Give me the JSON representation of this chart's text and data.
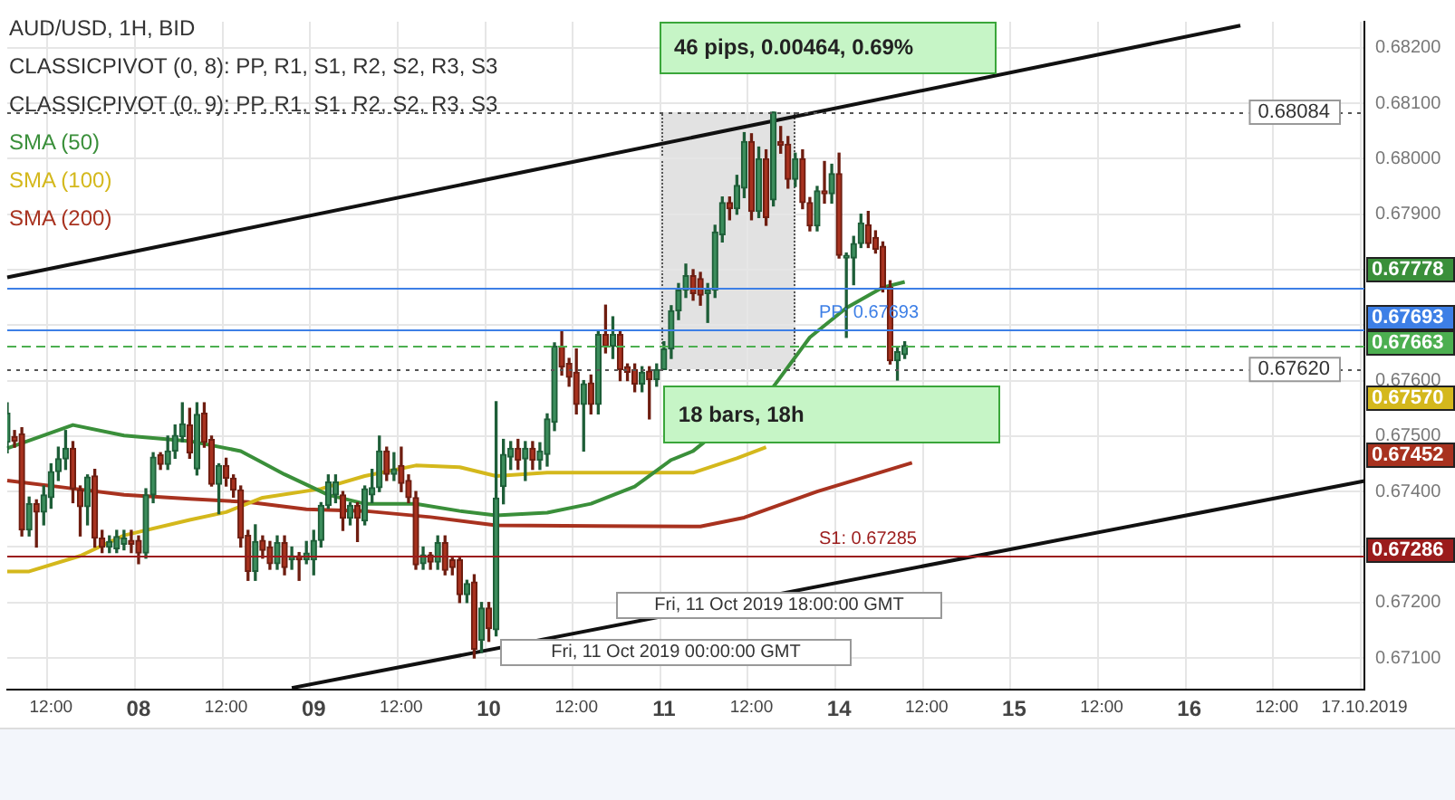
{
  "chart_data": {
    "type": "candlestick",
    "title": "AUD/USD, 1H, BID",
    "categories": [
      null,
      null,
      null,
      null,
      null,
      null,
      "12:00",
      null,
      null,
      null,
      null,
      null,
      null,
      null,
      null,
      null,
      null,
      null,
      "08",
      null,
      null,
      null,
      null,
      null,
      null,
      null,
      null,
      null,
      null,
      null,
      "12:00",
      null,
      null,
      null,
      null,
      null,
      null,
      null,
      null,
      null,
      null,
      null,
      "09",
      null,
      null,
      null,
      null,
      null,
      null,
      null,
      null,
      null,
      null,
      null,
      "12:00",
      null,
      null,
      null,
      null,
      null,
      null,
      null,
      null,
      null,
      null,
      null,
      "10",
      null,
      null,
      null,
      null,
      null,
      null,
      null,
      null,
      null,
      null,
      null,
      "12:00",
      null,
      null,
      null,
      null,
      null,
      null,
      null,
      null,
      null,
      null,
      null,
      "11",
      null,
      null,
      null,
      null,
      null,
      null,
      null,
      null,
      null,
      null,
      null,
      "12:00",
      null,
      null,
      null,
      null,
      null,
      null,
      null,
      null,
      null,
      null,
      null,
      "14",
      null,
      null,
      null,
      null,
      null,
      null,
      null,
      null,
      null,
      null,
      null,
      "12:00",
      null,
      null,
      null,
      null,
      null,
      null,
      null,
      null,
      null,
      null,
      null,
      "15",
      null,
      null,
      null,
      null,
      null,
      null,
      null,
      null,
      null,
      null,
      null,
      "12:00",
      null,
      null,
      null,
      null,
      null,
      null,
      null,
      null,
      null,
      null,
      null,
      "16",
      null,
      null,
      null,
      null,
      null,
      null,
      null,
      null,
      null,
      null,
      null,
      "12:00",
      null,
      null,
      null,
      null,
      null,
      null,
      null,
      null,
      null,
      null,
      null,
      "17.10.2019"
    ],
    "ohlc": [
      [
        0.67489,
        0.6756,
        0.6747,
        0.67541
      ],
      [
        0.67499,
        0.6751,
        0.6748,
        0.67491
      ],
      [
        0.67504,
        0.67515,
        0.6732,
        0.67331
      ],
      [
        0.67331,
        0.6739,
        0.6732,
        0.67378
      ],
      [
        0.67378,
        0.67385,
        0.673,
        0.67363
      ],
      [
        0.67363,
        0.6741,
        0.6734,
        0.67394
      ],
      [
        0.67389,
        0.6745,
        0.6737,
        0.67436
      ],
      [
        0.67436,
        0.6748,
        0.6742,
        0.67459
      ],
      [
        0.67459,
        0.6751,
        0.6744,
        0.67478
      ],
      [
        0.67478,
        0.6749,
        0.6738,
        0.67405
      ],
      [
        0.67403,
        0.6741,
        0.6732,
        0.67373
      ],
      [
        0.67373,
        0.6743,
        0.6734,
        0.67426
      ],
      [
        0.67428,
        0.6744,
        0.673,
        0.67316
      ],
      [
        0.67316,
        0.6733,
        0.6729,
        0.673
      ],
      [
        0.673,
        0.6732,
        0.6729,
        0.6731
      ],
      [
        0.67297,
        0.6733,
        0.6729,
        0.67319
      ],
      [
        0.67305,
        0.6733,
        0.67295,
        0.67316
      ],
      [
        0.67312,
        0.6733,
        0.6729,
        0.67305
      ],
      [
        0.67312,
        0.6732,
        0.6727,
        0.67289
      ],
      [
        0.67289,
        0.67405,
        0.6728,
        0.67394
      ],
      [
        0.67394,
        0.6747,
        0.6738,
        0.67462
      ],
      [
        0.67466,
        0.6747,
        0.6744,
        0.67449
      ],
      [
        0.67449,
        0.675,
        0.6744,
        0.67473
      ],
      [
        0.67473,
        0.6752,
        0.6746,
        0.67501
      ],
      [
        0.67499,
        0.6756,
        0.6749,
        0.67522
      ],
      [
        0.6752,
        0.6755,
        0.6746,
        0.6747
      ],
      [
        0.67441,
        0.6756,
        0.6743,
        0.67539
      ],
      [
        0.67541,
        0.6756,
        0.6748,
        0.67489
      ],
      [
        0.67494,
        0.675,
        0.6741,
        0.67413
      ],
      [
        0.67413,
        0.6745,
        0.6736,
        0.67447
      ],
      [
        0.67447,
        0.6746,
        0.6741,
        0.67424
      ],
      [
        0.67424,
        0.6743,
        0.6739,
        0.67403
      ],
      [
        0.67403,
        0.6741,
        0.673,
        0.67316
      ],
      [
        0.67321,
        0.6733,
        0.6724,
        0.67256
      ],
      [
        0.67256,
        0.6734,
        0.6724,
        0.6731
      ],
      [
        0.67312,
        0.6732,
        0.6728,
        0.67294
      ],
      [
        0.673,
        0.6731,
        0.6726,
        0.6727
      ],
      [
        0.6727,
        0.6732,
        0.6726,
        0.67308
      ],
      [
        0.67308,
        0.6732,
        0.6725,
        0.67263
      ],
      [
        0.67277,
        0.673,
        0.6726,
        0.67284
      ],
      [
        0.67284,
        0.6729,
        0.6724,
        0.67277
      ],
      [
        0.67277,
        0.6731,
        0.6727,
        0.67289
      ],
      [
        0.67277,
        0.6733,
        0.6725,
        0.67312
      ],
      [
        0.67312,
        0.6738,
        0.673,
        0.67375
      ],
      [
        0.67375,
        0.6743,
        0.6737,
        0.67417
      ],
      [
        0.67394,
        0.6743,
        0.6738,
        0.67417
      ],
      [
        0.67394,
        0.674,
        0.6733,
        0.67352
      ],
      [
        0.67352,
        0.6738,
        0.6734,
        0.67375
      ],
      [
        0.67375,
        0.6738,
        0.6731,
        0.67352
      ],
      [
        0.67347,
        0.6741,
        0.6734,
        0.67405
      ],
      [
        0.67394,
        0.6744,
        0.6738,
        0.67407
      ],
      [
        0.67407,
        0.675,
        0.674,
        0.67473
      ],
      [
        0.67473,
        0.6748,
        0.6742,
        0.67431
      ],
      [
        0.67431,
        0.6747,
        0.6742,
        0.67441
      ],
      [
        0.67447,
        0.6748,
        0.674,
        0.67415
      ],
      [
        0.6742,
        0.6743,
        0.6738,
        0.67389
      ],
      [
        0.67389,
        0.674,
        0.6726,
        0.67268
      ],
      [
        0.6727,
        0.673,
        0.6726,
        0.67286
      ],
      [
        0.67286,
        0.6729,
        0.6726,
        0.67273
      ],
      [
        0.67273,
        0.6732,
        0.6726,
        0.67308
      ],
      [
        0.67308,
        0.6732,
        0.6725,
        0.67258
      ],
      [
        0.67277,
        0.6728,
        0.6725,
        0.67263
      ],
      [
        0.67277,
        0.6728,
        0.672,
        0.67214
      ],
      [
        0.67214,
        0.6724,
        0.672,
        0.67234
      ],
      [
        0.67237,
        0.6725,
        0.671,
        0.67116
      ],
      [
        0.67132,
        0.672,
        0.6711,
        0.6719
      ],
      [
        0.6719,
        0.672,
        0.6713,
        0.67153
      ],
      [
        0.67151,
        0.67562,
        0.6714,
        0.67388
      ],
      [
        0.67409,
        0.67494,
        0.67378,
        0.67467
      ],
      [
        0.67462,
        0.6749,
        0.6744,
        0.67478
      ],
      [
        0.67478,
        0.67494,
        0.6744,
        0.67457
      ],
      [
        0.67459,
        0.6749,
        0.6742,
        0.67478
      ],
      [
        0.67478,
        0.6749,
        0.6744,
        0.67457
      ],
      [
        0.67457,
        0.67488,
        0.6744,
        0.67473
      ],
      [
        0.67467,
        0.6754,
        0.67446,
        0.67531
      ],
      [
        0.67525,
        0.67668,
        0.6751,
        0.67662
      ],
      [
        0.67662,
        0.67689,
        0.6761,
        0.67625
      ],
      [
        0.67631,
        0.6764,
        0.6759,
        0.67606
      ],
      [
        0.67615,
        0.67657,
        0.6754,
        0.67557
      ],
      [
        0.67557,
        0.676,
        0.67473,
        0.67594
      ],
      [
        0.67596,
        0.6761,
        0.6754,
        0.67557
      ],
      [
        0.67557,
        0.6769,
        0.6754,
        0.67683
      ],
      [
        0.67683,
        0.67736,
        0.6765,
        0.67662
      ],
      [
        0.67662,
        0.67715,
        0.6764,
        0.67683
      ],
      [
        0.67683,
        0.6769,
        0.676,
        0.6762
      ],
      [
        0.67625,
        0.6763,
        0.676,
        0.67615
      ],
      [
        0.6762,
        0.6763,
        0.6758,
        0.67594
      ],
      [
        0.67594,
        0.67625,
        0.6758,
        0.67615
      ],
      [
        0.67617,
        0.67625,
        0.67531,
        0.67602
      ],
      [
        0.67602,
        0.6763,
        0.6759,
        0.6762
      ],
      [
        0.6762,
        0.6767,
        0.6762,
        0.67657
      ],
      [
        0.67657,
        0.67735,
        0.6764,
        0.67726
      ],
      [
        0.67726,
        0.67775,
        0.6771,
        0.67763
      ],
      [
        0.67763,
        0.6781,
        0.6775,
        0.67789
      ],
      [
        0.67789,
        0.678,
        0.67745,
        0.67757
      ],
      [
        0.67784,
        0.67795,
        0.67736,
        0.67754
      ],
      [
        0.67757,
        0.67775,
        0.67705,
        0.67763
      ],
      [
        0.67763,
        0.6788,
        0.6775,
        0.67868
      ],
      [
        0.67863,
        0.67931,
        0.6785,
        0.67921
      ],
      [
        0.67921,
        0.67931,
        0.6789,
        0.6791
      ],
      [
        0.6791,
        0.6797,
        0.679,
        0.67952
      ],
      [
        0.67947,
        0.68047,
        0.6793,
        0.68031
      ],
      [
        0.68031,
        0.68045,
        0.6789,
        0.67905
      ],
      [
        0.67905,
        0.68021,
        0.67894,
        0.68
      ],
      [
        0.68,
        0.68016,
        0.6788,
        0.67894
      ],
      [
        0.67926,
        0.68084,
        0.67915,
        0.68084
      ],
      [
        0.68031,
        0.68058,
        0.6801,
        0.68024
      ],
      [
        0.68026,
        0.6804,
        0.67947,
        0.67963
      ],
      [
        0.67963,
        0.6801,
        0.6795,
        0.68
      ],
      [
        0.68,
        0.68016,
        0.6791,
        0.67921
      ],
      [
        0.67921,
        0.6793,
        0.6787,
        0.67879
      ],
      [
        0.67879,
        0.6795,
        0.6787,
        0.67942
      ],
      [
        0.67942,
        0.67995,
        0.6792,
        0.67937
      ],
      [
        0.67937,
        0.6799,
        0.6792,
        0.67973
      ],
      [
        0.67973,
        0.6801,
        0.67821,
        0.67826
      ],
      [
        0.67821,
        0.6783,
        0.67678,
        0.67826
      ],
      [
        0.67821,
        0.6786,
        0.67773,
        0.67847
      ],
      [
        0.67847,
        0.679,
        0.6784,
        0.67884
      ],
      [
        0.67881,
        0.67905,
        0.6784,
        0.67847
      ],
      [
        0.67858,
        0.6787,
        0.6783,
        0.67837
      ],
      [
        0.67842,
        0.6785,
        0.6776,
        0.67768
      ],
      [
        0.67768,
        0.6778,
        0.6763,
        0.67636
      ],
      [
        0.67636,
        0.6766,
        0.67601,
        0.67652
      ],
      [
        0.67647,
        0.6767,
        0.6764,
        0.67663
      ],
      null,
      null,
      null,
      null,
      null,
      null,
      null,
      null,
      null,
      null,
      null,
      null,
      null,
      null,
      null,
      null,
      null,
      null,
      null,
      null,
      null,
      null,
      null,
      null,
      null,
      null,
      null,
      null,
      null,
      null,
      null,
      null,
      null,
      null,
      null,
      null,
      null,
      null,
      null,
      null,
      null,
      null,
      null,
      null,
      null,
      null,
      null,
      null,
      null,
      null,
      null,
      null,
      null,
      null,
      null,
      null,
      null,
      null,
      null,
      null,
      null,
      null,
      null
    ],
    "series": [
      {
        "name": "SMA (50)",
        "type": "line",
        "color": "#3a8f3a",
        "values": [
          0.67478,
          null,
          null,
          null,
          null,
          null,
          null,
          null,
          null,
          0.6752,
          null,
          null,
          null,
          null,
          null,
          null,
          0.67501,
          null,
          null,
          null,
          null,
          null,
          null,
          null,
          null,
          0.67491,
          null,
          null,
          null,
          null,
          null,
          null,
          0.67473,
          null,
          null,
          null,
          null,
          null,
          0.67431,
          null,
          null,
          null,
          null,
          null,
          0.67394,
          null,
          null,
          null,
          null,
          0.67378,
          null,
          null,
          null,
          null,
          null,
          null,
          0.67378,
          null,
          null,
          null,
          null,
          null,
          0.67365,
          null,
          null,
          null,
          null,
          0.67357,
          null,
          null,
          null,
          null,
          null,
          null,
          0.67362,
          null,
          null,
          null,
          null,
          null,
          0.67378,
          null,
          null,
          null,
          null,
          null,
          0.67409,
          null,
          null,
          null,
          null,
          0.67457,
          null,
          null,
          0.67473,
          null,
          null,
          null,
          null,
          null,
          null,
          null,
          null,
          null,
          null,
          0.67589,
          null,
          null,
          null,
          null,
          0.67678,
          null,
          null,
          null,
          null,
          0.67731,
          null,
          null,
          null,
          null,
          0.67768,
          null,
          null,
          0.67778,
          null,
          null,
          null,
          null,
          null,
          null,
          null,
          null,
          null,
          null,
          null,
          null,
          null,
          null,
          null,
          null,
          null,
          null,
          null,
          null,
          null,
          null,
          null,
          null,
          null,
          null,
          null,
          null,
          null,
          null,
          null,
          null,
          null,
          null,
          null,
          null,
          null,
          null,
          null,
          null,
          null,
          null,
          null,
          null,
          null,
          null,
          null,
          null,
          null,
          null,
          null,
          null,
          null,
          null,
          null,
          null,
          null,
          null,
          null,
          null,
          null,
          null,
          null
        ]
      },
      {
        "name": "SMA (100)",
        "type": "line",
        "color": "#d4b81c",
        "values": [
          0.67256,
          null,
          null,
          0.67256,
          null,
          null,
          null,
          null,
          null,
          null,
          0.67284,
          null,
          null,
          null,
          null,
          null,
          0.67321,
          null,
          null,
          null,
          null,
          null,
          null,
          null,
          null,
          0.67349,
          null,
          null,
          null,
          null,
          0.67363,
          null,
          null,
          null,
          null,
          0.67389,
          null,
          null,
          null,
          null,
          null,
          null,
          null,
          0.67405,
          null,
          null,
          null,
          null,
          null,
          0.67428,
          null,
          null,
          null,
          null,
          null,
          null,
          0.67447,
          null,
          null,
          null,
          null,
          null,
          0.67444,
          null,
          null,
          null,
          null,
          0.67428,
          null,
          null,
          null,
          null,
          null,
          null,
          0.67434,
          null,
          null,
          null,
          null,
          null,
          null,
          null,
          null,
          null,
          0.67434,
          null,
          null,
          null,
          null,
          null,
          null,
          null,
          null,
          null,
          0.67434,
          null,
          null,
          null,
          null,
          null,
          0.6746,
          null,
          null,
          null,
          0.6748,
          null,
          null,
          null,
          null,
          null,
          null,
          null,
          null,
          null,
          null,
          null,
          null,
          null,
          null,
          null,
          null,
          null,
          null,
          null,
          null,
          null,
          null,
          null,
          null,
          null,
          null,
          null,
          null,
          null,
          null,
          null,
          null,
          null,
          null,
          null,
          null,
          null,
          null,
          null,
          null,
          null,
          null,
          null,
          null,
          null,
          null,
          null,
          null,
          null,
          null,
          null,
          null,
          null,
          null,
          null,
          null,
          null,
          null,
          null,
          null,
          null,
          null,
          null,
          null,
          null,
          null,
          null,
          null,
          null,
          null,
          null,
          null,
          null,
          null,
          null,
          null,
          null,
          null,
          null,
          null,
          null,
          null
        ]
      },
      {
        "name": "SMA (200)",
        "type": "line",
        "color": "#a8321f",
        "values": [
          0.6742,
          null,
          null,
          null,
          null,
          null,
          null,
          null,
          0.67407,
          null,
          null,
          null,
          null,
          null,
          null,
          null,
          0.67394,
          null,
          null,
          null,
          null,
          null,
          null,
          null,
          null,
          0.67387,
          null,
          null,
          null,
          null,
          null,
          null,
          null,
          0.67381,
          null,
          null,
          null,
          null,
          null,
          null,
          null,
          0.67368,
          null,
          null,
          null,
          null,
          null,
          null,
          null,
          0.67365,
          null,
          null,
          null,
          null,
          null,
          null,
          null,
          null,
          0.67354,
          null,
          null,
          null,
          null,
          null,
          null,
          null,
          null,
          0.67339,
          null,
          null,
          null,
          null,
          null,
          null,
          null,
          null,
          null,
          null,
          null,
          null,
          null,
          0.67338,
          null,
          null,
          null,
          null,
          null,
          null,
          null,
          null,
          null,
          null,
          null,
          null,
          null,
          0.67337,
          null,
          null,
          null,
          null,
          null,
          0.67353,
          null,
          null,
          null,
          null,
          null,
          null,
          null,
          null,
          null,
          0.674,
          null,
          null,
          null,
          null,
          null,
          null,
          null,
          null,
          null,
          null,
          null,
          null,
          0.67452,
          null,
          null,
          null,
          null,
          null,
          null,
          null,
          null,
          null,
          null,
          null,
          null,
          null,
          null,
          null,
          null,
          null,
          null,
          null,
          null,
          null,
          null,
          null,
          null,
          null,
          null,
          null,
          null,
          null,
          null,
          null,
          null,
          null,
          null,
          null,
          null,
          null,
          null,
          null,
          null,
          null,
          null,
          null,
          null,
          null,
          null,
          null,
          null,
          null,
          null,
          null,
          null,
          null,
          null,
          null,
          null,
          null,
          null,
          null,
          null,
          null,
          null
        ]
      },
      {
        "type": "line",
        "color": "#111111",
        "values": [
          0.67786,
          null,
          null,
          null,
          null,
          null,
          null,
          null,
          null,
          null,
          null,
          null,
          null,
          null,
          null,
          null,
          null,
          null,
          null,
          null,
          null,
          null,
          null,
          null,
          null,
          null,
          null,
          null,
          null,
          null,
          null,
          null,
          null,
          null,
          null,
          null,
          null,
          null,
          null,
          null,
          null,
          null,
          null,
          null,
          null,
          null,
          null,
          null,
          null,
          null,
          null,
          null,
          null,
          null,
          null,
          null,
          null,
          null,
          null,
          null,
          null,
          null,
          null,
          null,
          null,
          null,
          null,
          null,
          null,
          null,
          null,
          null,
          null,
          null,
          null,
          null,
          null,
          null,
          null,
          null,
          null,
          null,
          null,
          null,
          null,
          null,
          null,
          null,
          null,
          null,
          null,
          null,
          null,
          null,
          null,
          null,
          null,
          null,
          null,
          null,
          null,
          null,
          null,
          null,
          null,
          null,
          null,
          null,
          null,
          null,
          null,
          null,
          null,
          null,
          null,
          null,
          null,
          null,
          null,
          null,
          null,
          null,
          null,
          null,
          null,
          null,
          null,
          null,
          null,
          null,
          null,
          null,
          null,
          null,
          null,
          null,
          null,
          null,
          null,
          null,
          null,
          null,
          null,
          null,
          null,
          null,
          null,
          null,
          null,
          null,
          null,
          null,
          null,
          null,
          null,
          null,
          null,
          null,
          null,
          null,
          null,
          null,
          null,
          null,
          null,
          null,
          null,
          null,
          null,
          0.6824,
          null,
          null,
          null,
          null,
          null,
          null,
          null,
          null,
          null,
          null,
          null,
          null,
          null,
          null,
          null,
          null,
          null
        ]
      },
      {
        "type": "line",
        "color": "#111111",
        "values": [
          null,
          null,
          null,
          null,
          null,
          null,
          null,
          null,
          null,
          null,
          null,
          null,
          null,
          null,
          null,
          null,
          null,
          null,
          null,
          null,
          null,
          null,
          null,
          null,
          null,
          null,
          null,
          null,
          null,
          null,
          null,
          null,
          null,
          null,
          null,
          null,
          null,
          null,
          null,
          0.67046,
          null,
          null,
          null,
          null,
          null,
          null,
          null,
          null,
          null,
          null,
          null,
          null,
          null,
          null,
          null,
          null,
          null,
          null,
          null,
          null,
          null,
          null,
          null,
          null,
          null,
          null,
          null,
          null,
          null,
          null,
          null,
          null,
          null,
          null,
          null,
          null,
          null,
          null,
          null,
          null,
          null,
          null,
          null,
          null,
          null,
          null,
          null,
          null,
          null,
          null,
          null,
          null,
          null,
          null,
          null,
          null,
          null,
          null,
          null,
          null,
          null,
          null,
          null,
          null,
          null,
          null,
          null,
          null,
          null,
          null,
          null,
          null,
          null,
          null,
          null,
          null,
          null,
          null,
          null,
          null,
          null,
          null,
          null,
          null,
          null,
          null,
          null,
          null,
          null,
          null,
          null,
          null,
          null,
          null,
          null,
          null,
          null,
          null,
          null,
          null,
          null,
          null,
          null,
          null,
          null,
          null,
          null,
          null,
          null,
          null,
          null,
          null,
          null,
          null,
          null,
          null,
          null,
          null,
          null,
          null,
          null,
          null,
          null,
          null,
          null,
          null,
          null,
          null,
          null,
          null,
          null,
          null,
          null,
          null,
          null,
          null,
          null,
          null,
          null,
          null,
          null,
          null,
          null,
          null,
          null,
          null,
          0.67419
        ]
      }
    ],
    "ylim": [
      0.67043,
      0.68247
    ],
    "yticks": [
      {
        "value": 0.671,
        "label": "0.67100"
      },
      {
        "value": 0.672,
        "label": "0.67200"
      },
      {
        "value": 0.673,
        "label": null
      },
      {
        "value": 0.674,
        "label": "0.67400"
      },
      {
        "value": 0.675,
        "label": "0.67500"
      },
      {
        "value": 0.676,
        "label": "0.67600"
      },
      {
        "value": 0.677,
        "label": null
      },
      {
        "value": 0.678,
        "label": null
      },
      {
        "value": 0.679,
        "label": "0.67900"
      },
      {
        "value": 0.68,
        "label": "0.68000"
      },
      {
        "value": 0.681,
        "label": "0.68100"
      },
      {
        "value": 0.682,
        "label": "0.68200"
      }
    ],
    "ref_lines": [
      {
        "axis": "y",
        "value": 0.68084,
        "label": "0.68084",
        "color": "#555555",
        "line_style": "dotted"
      },
      {
        "axis": "y",
        "value": 0.67768,
        "color": "#3d7fe6"
      },
      {
        "axis": "y",
        "value": 0.67693,
        "label": "PP: 0.67693",
        "color": "#3d7fe6"
      },
      {
        "axis": "y",
        "value": 0.67663,
        "color": "#4caf50",
        "line_style": "dashed"
      },
      {
        "axis": "y",
        "value": 0.6762,
        "label": "0.67620",
        "color": "#555555",
        "line_style": "dotted"
      },
      {
        "axis": "y",
        "value": 0.67286,
        "label": "S1: 0.67285",
        "color": "#9b1c1c"
      }
    ],
    "annotations": [
      "CLASSICPIVOT (0, 8): PP, R1, S1, R2, S2, R3, S3",
      "CLASSICPIVOT (0, 9): PP, R1, S1, R2, S2, R3, S3",
      "46 pips, 0.00464, 0.69%",
      {
        "text": "18 bars, 18h",
        "x": "11",
        "y": 0.6762
      },
      "Fri, 11 Oct 2019 18:00:00 GMT",
      "Fri, 11 Oct 2019 00:00:00 GMT",
      "0.67778",
      "0.67693",
      "0.67663",
      "0.67570",
      "0.67452",
      "0.67286"
    ],
    "grid": true,
    "legend": "top left"
  }
}
